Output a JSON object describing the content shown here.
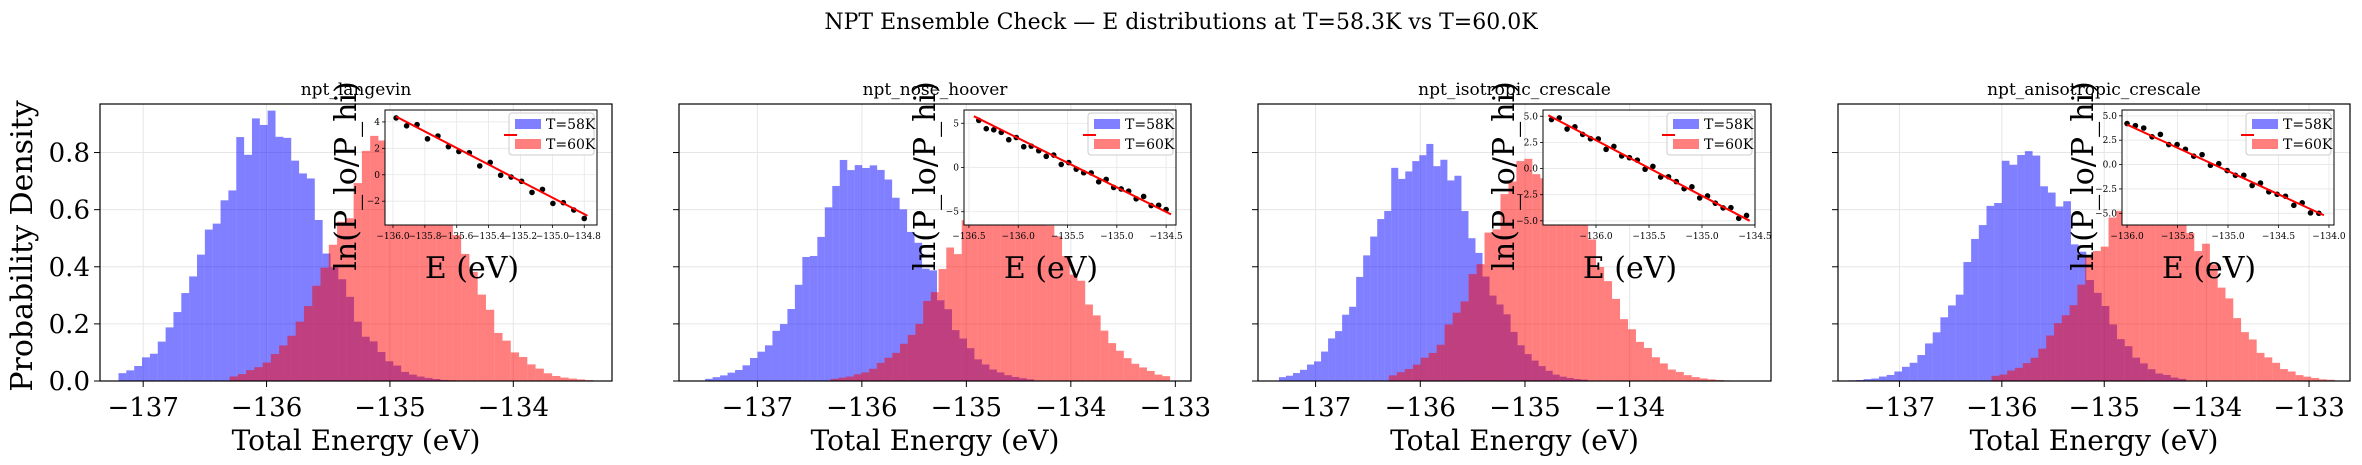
{
  "chart_data": {
    "type": "bar",
    "suptitle": "NPT Ensemble Check — E distributions at T=58.3K vs T=60.0K",
    "ylabel": "Probability Density",
    "colors": {
      "low": "#7b7bfc",
      "high": "#fb7b7b",
      "overlap": "#c0397b",
      "fit": "#ff0000",
      "points": "#000000",
      "grid": "#e6e6e6"
    },
    "legend": [
      "T=58K",
      "T=60K"
    ],
    "panels": [
      {
        "title": "npt_langevin",
        "xlabel": "Total Energy (eV)",
        "xlim": [
          -137.35,
          -133.2
        ],
        "ylim": [
          0,
          0.97
        ],
        "xticks": [
          -137,
          -136,
          -135,
          -134
        ],
        "xticklabels": [
          "−137",
          "−136",
          "−135",
          "−134"
        ],
        "yticks": [
          0.0,
          0.2,
          0.4,
          0.6,
          0.8
        ],
        "yticklabels": [
          "0.0",
          "0.2",
          "0.4",
          "0.6",
          "0.8"
        ],
        "low": {
          "label": "T=58K",
          "mu": -136.0,
          "sigma": 0.44,
          "peak": 0.9,
          "xmin": -137.2,
          "xmax": -134.4,
          "bins": 44
        },
        "high": {
          "label": "T=60K",
          "mu": -134.95,
          "sigma": 0.47,
          "peak": 0.85,
          "xmin": -136.3,
          "xmax": -133.35,
          "bins": 44
        },
        "inset": {
          "xlabel": "E (eV)",
          "ylabel": "ln(P_lo/P_hi)",
          "xlim": [
            -136.05,
            -134.72
          ],
          "ylim": [
            -3.8,
            4.9
          ],
          "xticks": [
            -136.0,
            -135.8,
            -135.6,
            -135.4,
            -135.2,
            -135.0,
            -134.8
          ],
          "xticklabels": [
            "−136.0",
            "−135.8",
            "−135.6",
            "−135.4",
            "−135.2",
            "−135.0",
            "−134.8"
          ],
          "yticks": [
            -2,
            0,
            2,
            4
          ],
          "yticklabels": [
            "−2",
            "0",
            "2",
            "4"
          ],
          "points": {
            "x0": -135.98,
            "x1": -134.8,
            "n": 19,
            "y0": 4.3,
            "y1": -3.1
          },
          "fit": {
            "x": [
              -135.98,
              -134.78
            ],
            "y": [
              4.4,
              -3.1
            ]
          }
        }
      },
      {
        "title": "npt_nose_hoover",
        "xlabel": "Total Energy (eV)",
        "xlim": [
          -137.75,
          -132.85
        ],
        "ylim": [
          0,
          0.97
        ],
        "xticks": [
          -137,
          -136,
          -135,
          -134,
          -133
        ],
        "xticklabels": [
          "−137",
          "−136",
          "−135",
          "−134",
          "−133"
        ],
        "yticks": [
          0.0,
          0.2,
          0.4,
          0.6,
          0.8
        ],
        "yticklabels": [
          "0.0",
          "0.2",
          "0.4",
          "0.6",
          "0.8"
        ],
        "low": {
          "label": "T=58K",
          "mu": -135.95,
          "sigma": 0.5,
          "peak": 0.79,
          "xmin": -137.5,
          "xmax": -134.35,
          "bins": 44
        },
        "high": {
          "label": "T=60K",
          "mu": -134.6,
          "sigma": 0.55,
          "peak": 0.72,
          "xmin": -136.3,
          "xmax": -133.05,
          "bins": 44
        },
        "inset": {
          "xlabel": "E (eV)",
          "ylabel": "ln(P_lo/P_hi)",
          "xlim": [
            -136.55,
            -134.4
          ],
          "ylim": [
            -6.5,
            6.5
          ],
          "xticks": [
            -136.5,
            -136.0,
            -135.5,
            -135.0,
            -134.5
          ],
          "xticklabels": [
            "−136.5",
            "−136.0",
            "−135.5",
            "−135.0",
            "−134.5"
          ],
          "yticks": [
            -5,
            0,
            5
          ],
          "yticklabels": [
            "−5",
            "0",
            "5"
          ],
          "points": {
            "x0": -136.4,
            "x1": -134.5,
            "n": 26,
            "y0": 5.0,
            "y1": -4.8
          },
          "fit": {
            "x": [
              -136.45,
              -134.45
            ],
            "y": [
              5.8,
              -5.3
            ]
          }
        }
      },
      {
        "title": "npt_isotropic_crescale",
        "xlabel": "Total Energy (eV)",
        "xlim": [
          -137.55,
          -132.65
        ],
        "ylim": [
          0,
          0.97
        ],
        "xticks": [
          -137,
          -136,
          -135,
          -134
        ],
        "xticklabels": [
          "−137",
          "−136",
          "−135",
          "−134"
        ],
        "yticks": [
          0.0,
          0.2,
          0.4,
          0.6,
          0.8
        ],
        "yticklabels": [
          "0.0",
          "0.2",
          "0.4",
          "0.6",
          "0.8"
        ],
        "low": {
          "label": "T=58K",
          "mu": -135.95,
          "sigma": 0.47,
          "peak": 0.84,
          "xmin": -137.35,
          "xmax": -134.4,
          "bins": 44
        },
        "high": {
          "label": "T=60K",
          "mu": -134.85,
          "sigma": 0.52,
          "peak": 0.76,
          "xmin": -136.3,
          "xmax": -132.95,
          "bins": 44
        },
        "inset": {
          "xlabel": "E (eV)",
          "ylabel": "ln(P_lo/P_hi)",
          "xlim": [
            -136.5,
            -134.5
          ],
          "ylim": [
            -5.4,
            5.6
          ],
          "xticks": [
            -136.0,
            -135.5,
            -135.0,
            -134.5
          ],
          "xticklabels": [
            "−136.0",
            "−135.5",
            "−135.0",
            "−134.5"
          ],
          "yticks": [
            -5.0,
            -2.5,
            0.0,
            2.5,
            5.0
          ],
          "yticklabels": [
            "−5.0",
            "−2.5",
            "0.0",
            "2.5",
            "5.0"
          ],
          "points": {
            "x0": -136.42,
            "x1": -134.58,
            "n": 26,
            "y0": 4.9,
            "y1": -4.8
          },
          "fit": {
            "x": [
              -136.45,
              -134.55
            ],
            "y": [
              5.1,
              -5.0
            ]
          }
        }
      },
      {
        "title": "npt_anisotropic_crescale",
        "xlabel": "Total Energy (eV)",
        "xlim": [
          -137.6,
          -132.6
        ],
        "ylim": [
          0,
          0.97
        ],
        "xticks": [
          -137,
          -136,
          -135,
          -134,
          -133
        ],
        "xticklabels": [
          "−137",
          "−136",
          "−135",
          "−134",
          "−133"
        ],
        "yticks": [
          0.0,
          0.2,
          0.4,
          0.6,
          0.8
        ],
        "yticklabels": [
          "0.0",
          "0.2",
          "0.4",
          "0.6",
          "0.8"
        ],
        "low": {
          "label": "T=58K",
          "mu": -135.75,
          "sigma": 0.5,
          "peak": 0.79,
          "xmin": -137.5,
          "xmax": -134.2,
          "bins": 44
        },
        "high": {
          "label": "T=60K",
          "mu": -134.55,
          "sigma": 0.55,
          "peak": 0.72,
          "xmin": -136.1,
          "xmax": -132.75,
          "bins": 44
        },
        "inset": {
          "xlabel": "E (eV)",
          "ylabel": "ln(P_lo/P_hi)",
          "xlim": [
            -136.05,
            -133.95
          ],
          "ylim": [
            -6.2,
            5.6
          ],
          "xticks": [
            -136.0,
            -135.5,
            -135.0,
            -134.5,
            -134.0
          ],
          "xticklabels": [
            "−136.0",
            "−135.5",
            "−135.0",
            "−134.5",
            "−134.0"
          ],
          "yticks": [
            -5.0,
            -2.5,
            0.0,
            2.5,
            5.0
          ],
          "yticklabels": [
            "−5.0",
            "−2.5",
            "0.0",
            "2.5",
            "5.0"
          ],
          "points": {
            "x0": -136.0,
            "x1": -134.1,
            "n": 24,
            "y0": 4.4,
            "y1": -5.1
          },
          "fit": {
            "x": [
              -136.0,
              -134.05
            ],
            "y": [
              4.1,
              -5.2
            ]
          }
        }
      }
    ]
  }
}
